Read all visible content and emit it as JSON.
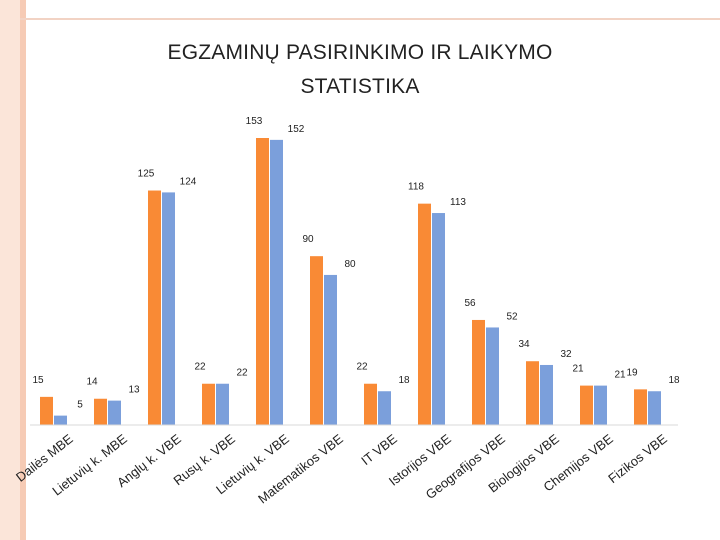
{
  "slide": {
    "title_line1": "EGZAMINŲ PASIRINKIMO IR LAIKYMO",
    "title_line2": "STATISTIKA"
  },
  "chart_data": {
    "type": "bar",
    "title": "EGZAMINŲ PASIRINKIMO IR LAIKYMO STATISTIKA",
    "categories": [
      "Dailės MBE",
      "Lietuvių k. MBE",
      "Anglų k. VBE",
      "Rusų k. VBE",
      "Lietuvių k. VBE",
      "Matematikos VBE",
      "IT VBE",
      "Istorijos VBE",
      "Geografijos VBE",
      "Biologijos VBE",
      "Chemijos VBE",
      "Fizikos VBE"
    ],
    "series": [
      {
        "values": [
          15,
          14,
          125,
          22,
          153,
          90,
          22,
          118,
          56,
          34,
          21,
          19
        ],
        "color": "#f98a35"
      },
      {
        "values": [
          5,
          13,
          124,
          22,
          152,
          80,
          18,
          113,
          52,
          32,
          21,
          18
        ],
        "color": "#7b9fdb"
      }
    ],
    "ylim": [
      0,
      153
    ],
    "grid": false,
    "legend": "none"
  }
}
